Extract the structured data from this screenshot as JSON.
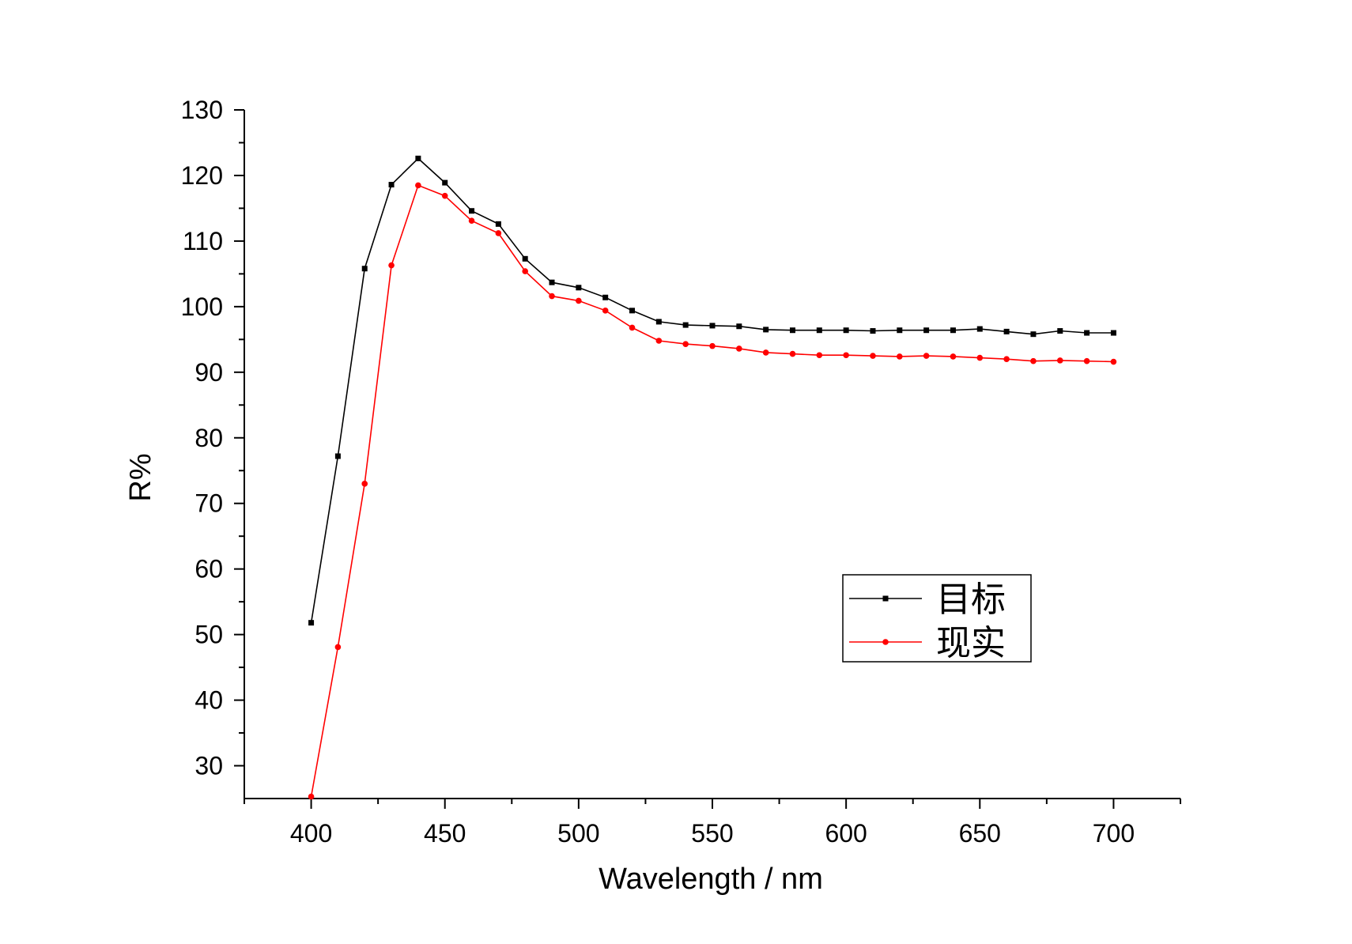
{
  "chart_data": {
    "type": "line",
    "xlabel": "Wavelength  /  nm",
    "ylabel": "R%",
    "xlim": [
      375,
      725
    ],
    "ylim": [
      25,
      130
    ],
    "x_ticks": [
      400,
      450,
      500,
      550,
      600,
      650,
      700
    ],
    "y_ticks": [
      30,
      40,
      50,
      60,
      70,
      80,
      90,
      100,
      110,
      120,
      130
    ],
    "x_tick_labels": [
      "400",
      "450",
      "500",
      "550",
      "600",
      "650",
      "700"
    ],
    "y_tick_labels": [
      "30",
      "40",
      "50",
      "60",
      "70",
      "80",
      "90",
      "100",
      "110",
      "120",
      "130"
    ],
    "legend_position": "center-right",
    "x": [
      400,
      410,
      420,
      430,
      440,
      450,
      460,
      470,
      480,
      490,
      500,
      510,
      520,
      530,
      540,
      550,
      560,
      570,
      580,
      590,
      600,
      610,
      620,
      630,
      640,
      650,
      660,
      670,
      680,
      690,
      700
    ],
    "series": [
      {
        "name": "目标",
        "color": "#000000",
        "marker": "square",
        "values": [
          51.8,
          77.2,
          105.8,
          118.6,
          122.6,
          118.9,
          114.6,
          112.6,
          107.3,
          103.7,
          102.9,
          101.4,
          99.4,
          97.7,
          97.2,
          97.1,
          97.0,
          96.5,
          96.4,
          96.4,
          96.4,
          96.3,
          96.4,
          96.4,
          96.4,
          96.6,
          96.2,
          95.8,
          96.3,
          96.0,
          96.0
        ]
      },
      {
        "name": "现实",
        "color": "#ff0000",
        "marker": "circle",
        "values": [
          25.3,
          48.1,
          73.0,
          106.3,
          118.5,
          116.9,
          113.1,
          111.2,
          105.4,
          101.6,
          100.9,
          99.4,
          96.8,
          94.8,
          94.3,
          94.0,
          93.6,
          93.0,
          92.8,
          92.6,
          92.6,
          92.5,
          92.4,
          92.5,
          92.4,
          92.2,
          92.0,
          91.7,
          91.8,
          91.7,
          91.6
        ]
      }
    ]
  }
}
